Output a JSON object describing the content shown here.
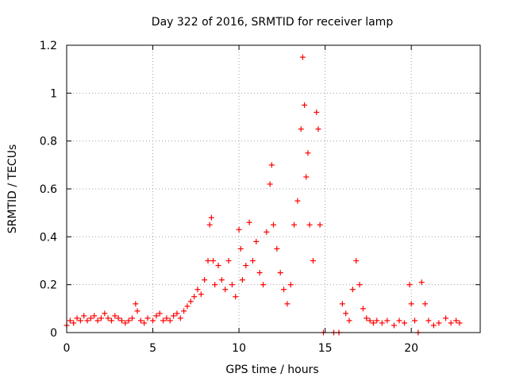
{
  "chart_data": {
    "type": "scatter",
    "title": "Day 322 of 2016, SRMTID for receiver lamp",
    "xlabel": "GPS time / hours",
    "ylabel": "SRMTID / TECUs",
    "xlim": [
      0,
      24
    ],
    "ylim": [
      0,
      1.2
    ],
    "xticks": [
      0,
      5,
      10,
      15,
      20
    ],
    "xtick_labels": [
      "0",
      "5",
      "10",
      "15",
      "20"
    ],
    "yticks": [
      0,
      0.2,
      0.4,
      0.6,
      0.8,
      1.0,
      1.2
    ],
    "ytick_labels": [
      "0",
      "0.2",
      "0.4",
      "0.6",
      "0.8",
      "1",
      "1.2"
    ],
    "grid": true,
    "marker": "+",
    "color": "#ff0000",
    "series": [
      {
        "name": "SRMTID",
        "points": [
          [
            0.0,
            0.03
          ],
          [
            0.2,
            0.05
          ],
          [
            0.4,
            0.04
          ],
          [
            0.6,
            0.06
          ],
          [
            0.8,
            0.05
          ],
          [
            1.0,
            0.07
          ],
          [
            1.2,
            0.05
          ],
          [
            1.4,
            0.06
          ],
          [
            1.6,
            0.07
          ],
          [
            1.8,
            0.05
          ],
          [
            2.0,
            0.06
          ],
          [
            2.2,
            0.08
          ],
          [
            2.4,
            0.06
          ],
          [
            2.6,
            0.05
          ],
          [
            2.8,
            0.07
          ],
          [
            3.0,
            0.06
          ],
          [
            3.2,
            0.05
          ],
          [
            3.4,
            0.04
          ],
          [
            3.6,
            0.05
          ],
          [
            3.8,
            0.06
          ],
          [
            4.0,
            0.12
          ],
          [
            4.1,
            0.09
          ],
          [
            4.3,
            0.05
          ],
          [
            4.5,
            0.04
          ],
          [
            4.7,
            0.06
          ],
          [
            5.0,
            0.05
          ],
          [
            5.2,
            0.07
          ],
          [
            5.4,
            0.08
          ],
          [
            5.6,
            0.05
          ],
          [
            5.8,
            0.06
          ],
          [
            6.0,
            0.05
          ],
          [
            6.2,
            0.07
          ],
          [
            6.4,
            0.08
          ],
          [
            6.6,
            0.06
          ],
          [
            6.8,
            0.09
          ],
          [
            7.0,
            0.11
          ],
          [
            7.2,
            0.13
          ],
          [
            7.4,
            0.15
          ],
          [
            7.6,
            0.18
          ],
          [
            7.8,
            0.16
          ],
          [
            8.0,
            0.22
          ],
          [
            8.2,
            0.3
          ],
          [
            8.3,
            0.45
          ],
          [
            8.4,
            0.48
          ],
          [
            8.5,
            0.3
          ],
          [
            8.6,
            0.2
          ],
          [
            8.8,
            0.28
          ],
          [
            9.0,
            0.22
          ],
          [
            9.2,
            0.18
          ],
          [
            9.4,
            0.3
          ],
          [
            9.6,
            0.2
          ],
          [
            9.8,
            0.15
          ],
          [
            10.0,
            0.43
          ],
          [
            10.1,
            0.35
          ],
          [
            10.2,
            0.22
          ],
          [
            10.4,
            0.28
          ],
          [
            10.6,
            0.46
          ],
          [
            10.8,
            0.3
          ],
          [
            11.0,
            0.38
          ],
          [
            11.2,
            0.25
          ],
          [
            11.4,
            0.2
          ],
          [
            11.6,
            0.42
          ],
          [
            11.8,
            0.62
          ],
          [
            11.9,
            0.7
          ],
          [
            12.0,
            0.45
          ],
          [
            12.2,
            0.35
          ],
          [
            12.4,
            0.25
          ],
          [
            12.6,
            0.18
          ],
          [
            12.8,
            0.12
          ],
          [
            13.0,
            0.2
          ],
          [
            13.2,
            0.45
          ],
          [
            13.4,
            0.55
          ],
          [
            13.6,
            0.85
          ],
          [
            13.7,
            1.15
          ],
          [
            13.8,
            0.95
          ],
          [
            13.9,
            0.65
          ],
          [
            14.0,
            0.75
          ],
          [
            14.1,
            0.45
          ],
          [
            14.3,
            0.3
          ],
          [
            14.5,
            0.92
          ],
          [
            14.6,
            0.85
          ],
          [
            14.7,
            0.45
          ],
          [
            14.9,
            0.0
          ],
          [
            15.5,
            0.0
          ],
          [
            15.8,
            0.0
          ],
          [
            16.0,
            0.12
          ],
          [
            16.2,
            0.08
          ],
          [
            16.4,
            0.05
          ],
          [
            16.6,
            0.18
          ],
          [
            16.8,
            0.3
          ],
          [
            17.0,
            0.2
          ],
          [
            17.2,
            0.1
          ],
          [
            17.4,
            0.06
          ],
          [
            17.6,
            0.05
          ],
          [
            17.8,
            0.04
          ],
          [
            18.0,
            0.05
          ],
          [
            18.3,
            0.04
          ],
          [
            18.6,
            0.05
          ],
          [
            19.0,
            0.03
          ],
          [
            19.3,
            0.05
          ],
          [
            19.6,
            0.04
          ],
          [
            19.9,
            0.2
          ],
          [
            20.0,
            0.12
          ],
          [
            20.2,
            0.05
          ],
          [
            20.4,
            0.0
          ],
          [
            20.6,
            0.21
          ],
          [
            20.8,
            0.12
          ],
          [
            21.0,
            0.05
          ],
          [
            21.3,
            0.03
          ],
          [
            21.6,
            0.04
          ],
          [
            22.0,
            0.06
          ],
          [
            22.3,
            0.04
          ],
          [
            22.6,
            0.05
          ],
          [
            22.8,
            0.04
          ]
        ]
      }
    ]
  }
}
